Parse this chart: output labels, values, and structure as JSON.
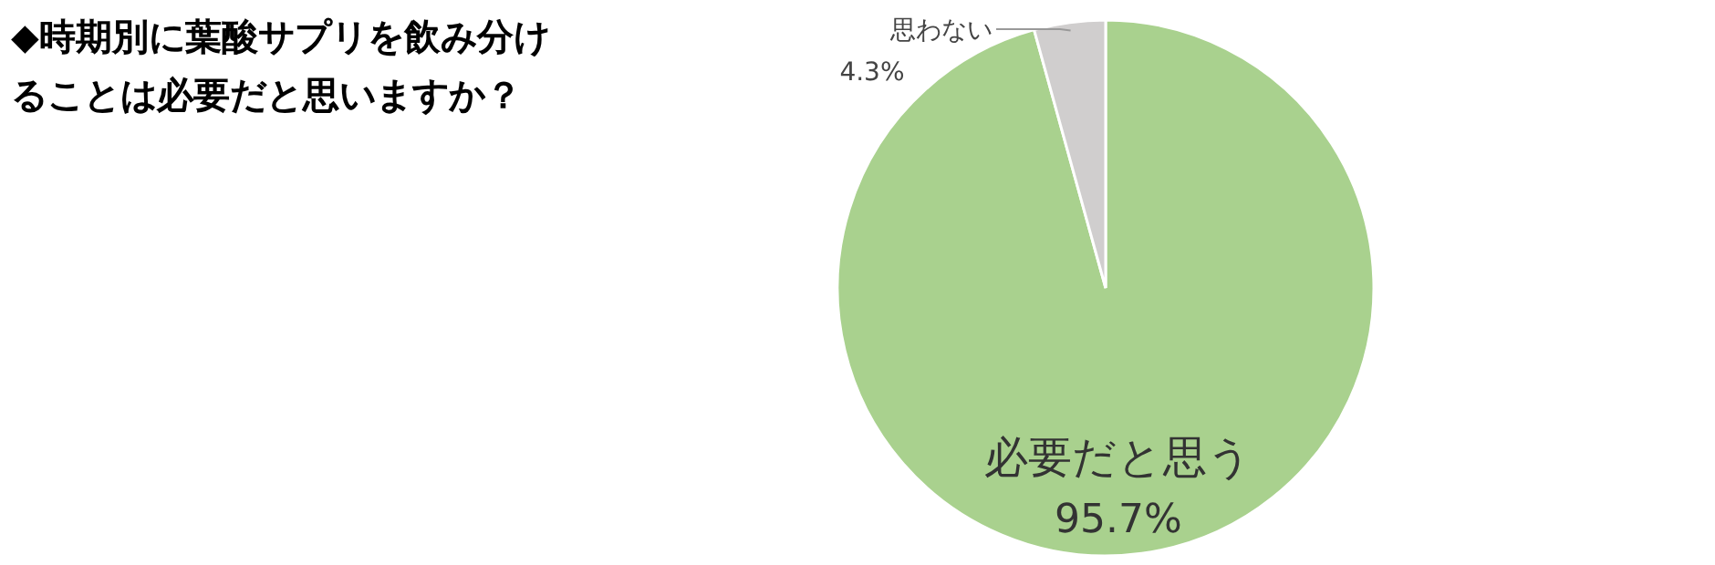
{
  "chart_data": {
    "type": "pie",
    "title": "◆時期別に葉酸サプリを飲み分けることは必要だと思いますか？",
    "categories": [
      "必要だと思う",
      "思わない"
    ],
    "values": [
      95.7,
      4.3
    ],
    "value_labels": [
      "95.7%",
      "4.3%"
    ],
    "colors": [
      "#a9d18e",
      "#d0cece"
    ]
  }
}
